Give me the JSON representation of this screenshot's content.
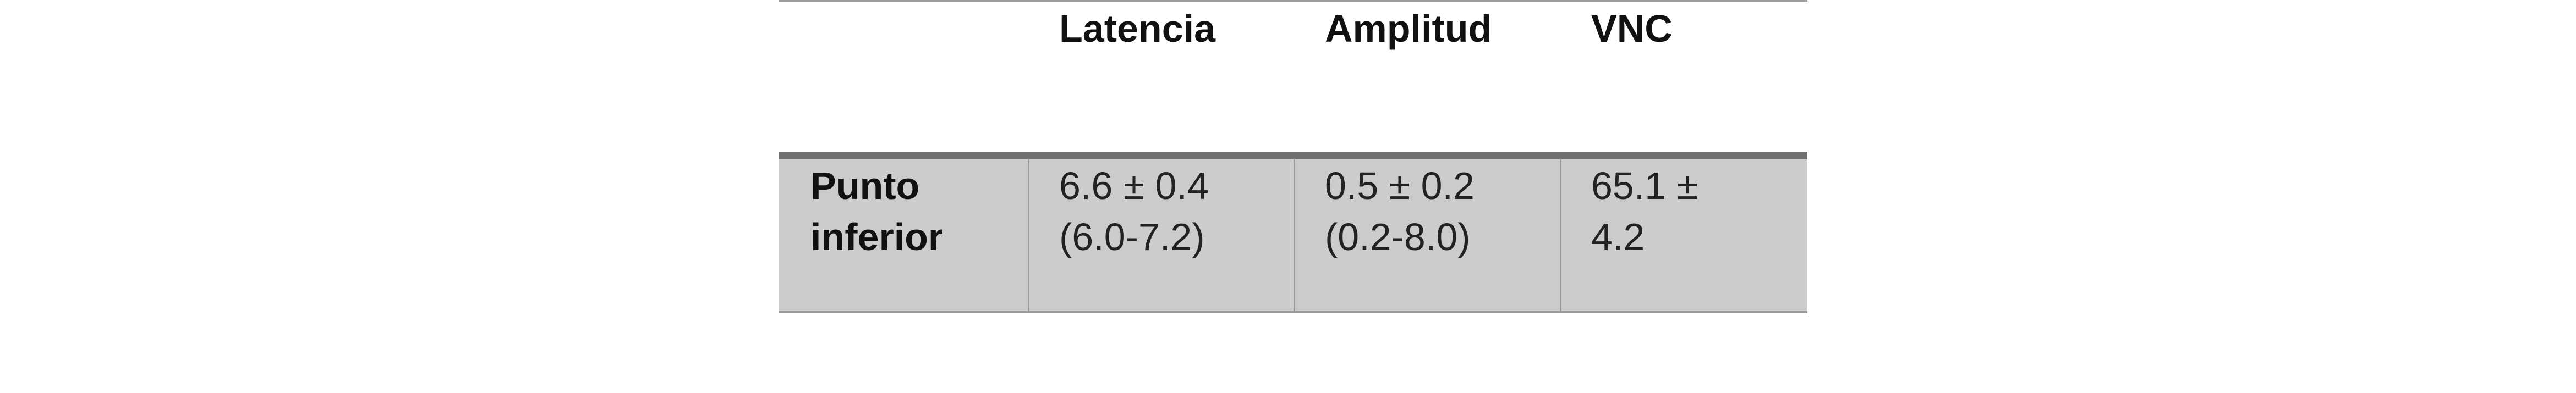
{
  "table": {
    "headers": [
      "",
      "Latencia",
      "Amplitud",
      "VNC"
    ],
    "rows": [
      {
        "label": [
          "Punto",
          "inferior"
        ],
        "latencia": [
          "6.6 ± 0.4",
          "(6.0-7.2)"
        ],
        "amplitud": [
          "0.5 ± 0.2",
          "(0.2-8.0)"
        ],
        "vnc": [
          "65.1 ±",
          "4.2"
        ]
      }
    ]
  }
}
